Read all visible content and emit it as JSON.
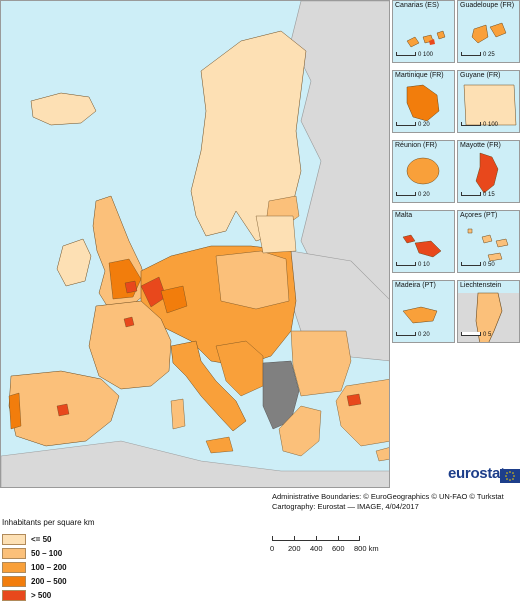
{
  "colors": {
    "sea": "#cdeef7",
    "non_eu": "#d9d9d9",
    "no_data": "#808080",
    "border": "#6b4a1e",
    "class_1": "#fde0b4",
    "class_2": "#fbc07a",
    "class_3": "#f9a03a",
    "class_4": "#f27d0c",
    "class_5": "#e8481c"
  },
  "insets": [
    {
      "title": "Canarias (ES)",
      "scale": "0 100"
    },
    {
      "title": "Guadeloupe (FR)",
      "scale": "0 25"
    },
    {
      "title": "Martinique (FR)",
      "scale": "0 20"
    },
    {
      "title": "Guyane (FR)",
      "scale": "0 100"
    },
    {
      "title": "Réunion (FR)",
      "scale": "0 20"
    },
    {
      "title": "Mayotte (FR)",
      "scale": "0 15"
    },
    {
      "title": "Malta",
      "scale": "0 10"
    },
    {
      "title": "Açores (PT)",
      "scale": "0 50"
    },
    {
      "title": "Madeira (PT)",
      "scale": "0 20"
    },
    {
      "title": "Liechtenstein",
      "scale": "0 5"
    }
  ],
  "logo": {
    "text": "eurostat"
  },
  "credits": {
    "line1": "Administrative Boundaries: © EuroGeographics © UN-FAO © Turkstat",
    "line2": "Cartography: Eurostat — IMAGE, 4/04/2017"
  },
  "legend": {
    "title": "Inhabitants per square km",
    "items": [
      {
        "label": "<= 50",
        "color_key": "class_1"
      },
      {
        "label": "50 – 100",
        "color_key": "class_2"
      },
      {
        "label": "100 – 200",
        "color_key": "class_3"
      },
      {
        "label": "200 – 500",
        "color_key": "class_4"
      },
      {
        "label": "> 500",
        "color_key": "class_5"
      }
    ]
  },
  "scalebar": {
    "ticks": [
      "0",
      "200",
      "400",
      "600",
      "800 km"
    ]
  }
}
